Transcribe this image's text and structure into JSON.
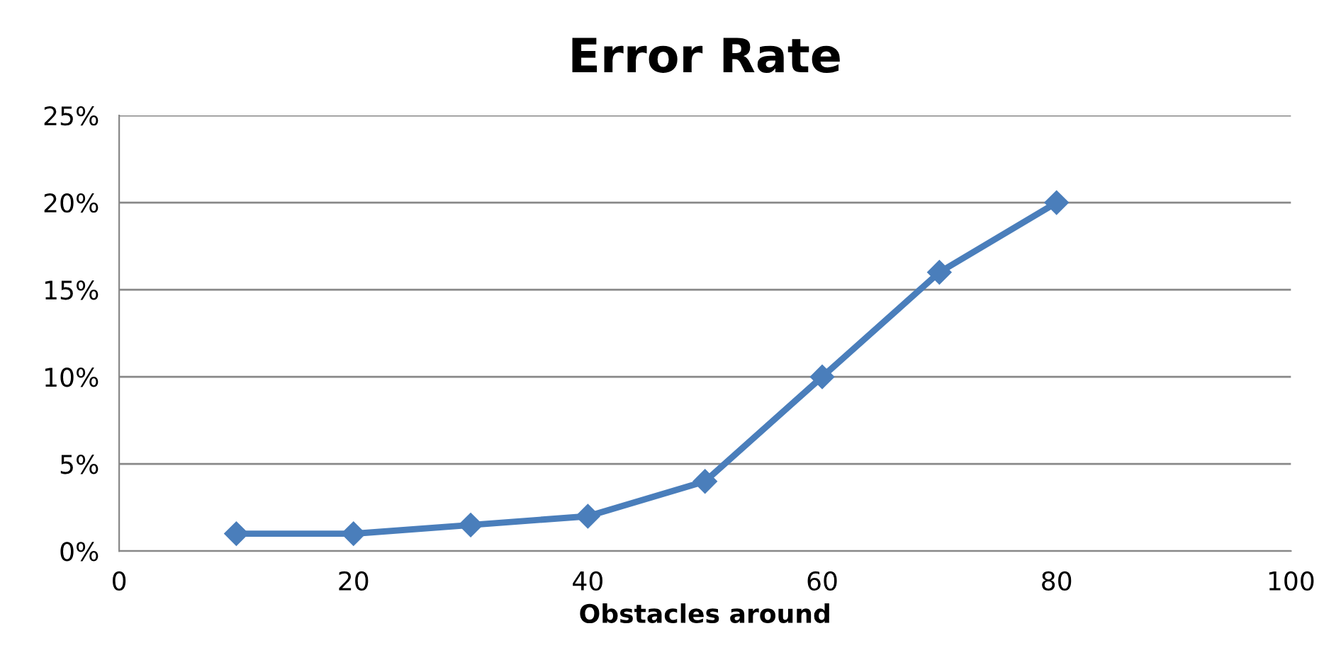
{
  "chart_data": {
    "type": "line",
    "title": "Error Rate",
    "xlabel": "Obstacles around",
    "x": [
      10,
      20,
      30,
      40,
      50,
      60,
      70,
      80
    ],
    "series": [
      {
        "color": "#4a7ebb",
        "values": [
          1,
          1,
          1.5,
          2,
          4,
          10,
          16,
          20
        ]
      }
    ],
    "xlim": [
      0,
      100
    ],
    "xticks": [
      0,
      20,
      40,
      60,
      80,
      100
    ],
    "ylim": [
      0,
      25
    ],
    "yticks": [
      {
        "value": 0,
        "label": "0%"
      },
      {
        "value": 5,
        "label": "5%"
      },
      {
        "value": 10,
        "label": "10%"
      },
      {
        "value": 15,
        "label": "15%"
      },
      {
        "value": 20,
        "label": "20%"
      },
      {
        "value": 25,
        "label": "25%"
      }
    ],
    "grid": "y",
    "marker": "diamond",
    "line_style": "solid",
    "legend": false
  }
}
